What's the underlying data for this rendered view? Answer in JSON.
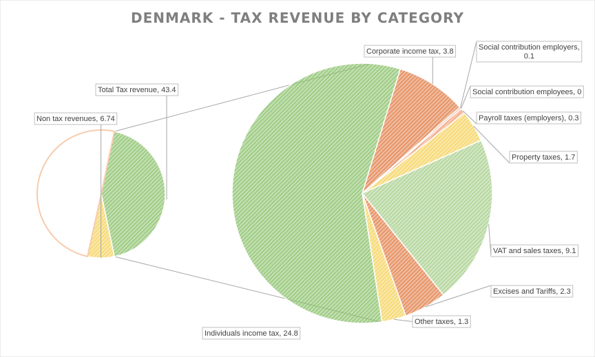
{
  "chart_data": {
    "type": "pie",
    "subtype": "pie-of-pie",
    "title": "DENMARK - TAX REVENUE BY CATEGORY",
    "primary_pie": {
      "slices": [
        {
          "label": "Total Tax revenue",
          "value": 43.4,
          "text": "Total Tax revenue, 43.4",
          "color": "#8cc26d",
          "hatch": true
        },
        {
          "label": "Non tax revenues",
          "value": 6.74,
          "text": "Non tax revenues, 6.74",
          "color": "#f5d35e",
          "hatch": true
        },
        {
          "label": "",
          "value": 49.86,
          "text": "",
          "color": "#ffffff",
          "outline": "#f8cbad",
          "hatch": false
        }
      ]
    },
    "secondary_pie": {
      "slices": [
        {
          "label": "Individuals income tax",
          "value": 24.8,
          "text": "Individuals income tax, 24.8",
          "color": "#8cc26d"
        },
        {
          "label": "Corporate income tax",
          "value": 3.8,
          "text": "Corporate income tax, 3.8",
          "color": "#e2804a"
        },
        {
          "label": "Social contribution employers",
          "value": 0.1,
          "text1": "Social contribution employers,",
          "text2": "0.1",
          "color": "#e2804a"
        },
        {
          "label": "Social contribution employees",
          "value": 0,
          "text": "Social contribution employees, 0",
          "color": "#e2804a"
        },
        {
          "label": "Payroll taxes (employers)",
          "value": 0.3,
          "text": "Payroll taxes (employers), 0.3",
          "color": "#f2a07a"
        },
        {
          "label": "Property taxes",
          "value": 1.7,
          "text": "Property taxes, 1.7",
          "color": "#f5d35e"
        },
        {
          "label": "VAT and sales taxes",
          "value": 9.1,
          "text": "VAT and sales taxes, 9.1",
          "color": "#a9d08e"
        },
        {
          "label": "Excises and Tariffs",
          "value": 2.3,
          "text": "Excises and Tariffs, 2.3",
          "color": "#e2804a"
        },
        {
          "label": "Other taxes",
          "value": 1.3,
          "text": "Other taxes, 1.3",
          "color": "#f5d35e"
        }
      ]
    }
  }
}
